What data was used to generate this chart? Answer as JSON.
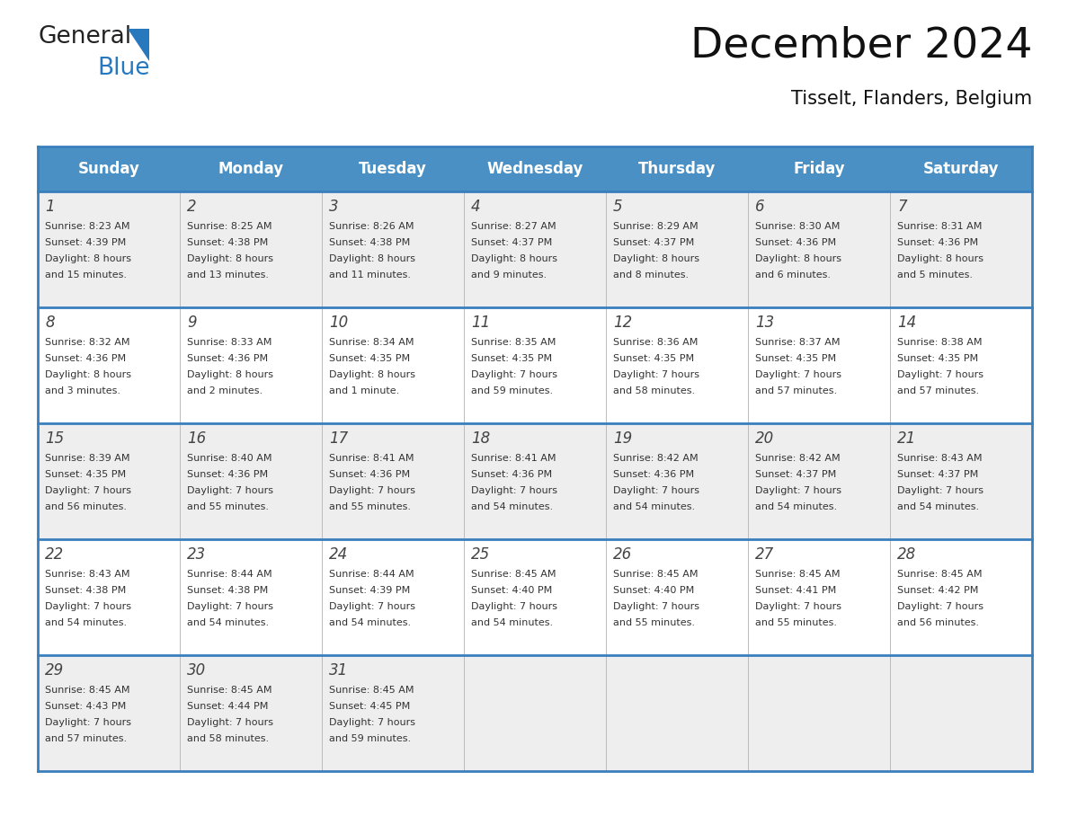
{
  "title": "December 2024",
  "subtitle": "Tisselt, Flanders, Belgium",
  "header_color": "#4A90C4",
  "header_text_color": "#FFFFFF",
  "day_headers": [
    "Sunday",
    "Monday",
    "Tuesday",
    "Wednesday",
    "Thursday",
    "Friday",
    "Saturday"
  ],
  "row_bg_even": "#EEEEEE",
  "row_bg_odd": "#FFFFFF",
  "grid_line_color": "#3A7FBD",
  "text_color": "#333333",
  "day_number_color": "#444444",
  "logo_general_color": "#222222",
  "logo_blue_color": "#2878BE",
  "title_color": "#111111",
  "subtitle_fontsize": 15,
  "title_fontsize": 34,
  "header_fontsize": 12,
  "day_num_fontsize": 12,
  "cell_text_fontsize": 8,
  "calendar_data": [
    [
      {
        "day": 1,
        "sunrise": "8:23 AM",
        "sunset": "4:39 PM",
        "daylight": "8 hours",
        "daylight2": "and 15 minutes."
      },
      {
        "day": 2,
        "sunrise": "8:25 AM",
        "sunset": "4:38 PM",
        "daylight": "8 hours",
        "daylight2": "and 13 minutes."
      },
      {
        "day": 3,
        "sunrise": "8:26 AM",
        "sunset": "4:38 PM",
        "daylight": "8 hours",
        "daylight2": "and 11 minutes."
      },
      {
        "day": 4,
        "sunrise": "8:27 AM",
        "sunset": "4:37 PM",
        "daylight": "8 hours",
        "daylight2": "and 9 minutes."
      },
      {
        "day": 5,
        "sunrise": "8:29 AM",
        "sunset": "4:37 PM",
        "daylight": "8 hours",
        "daylight2": "and 8 minutes."
      },
      {
        "day": 6,
        "sunrise": "8:30 AM",
        "sunset": "4:36 PM",
        "daylight": "8 hours",
        "daylight2": "and 6 minutes."
      },
      {
        "day": 7,
        "sunrise": "8:31 AM",
        "sunset": "4:36 PM",
        "daylight": "8 hours",
        "daylight2": "and 5 minutes."
      }
    ],
    [
      {
        "day": 8,
        "sunrise": "8:32 AM",
        "sunset": "4:36 PM",
        "daylight": "8 hours",
        "daylight2": "and 3 minutes."
      },
      {
        "day": 9,
        "sunrise": "8:33 AM",
        "sunset": "4:36 PM",
        "daylight": "8 hours",
        "daylight2": "and 2 minutes."
      },
      {
        "day": 10,
        "sunrise": "8:34 AM",
        "sunset": "4:35 PM",
        "daylight": "8 hours",
        "daylight2": "and 1 minute."
      },
      {
        "day": 11,
        "sunrise": "8:35 AM",
        "sunset": "4:35 PM",
        "daylight": "7 hours",
        "daylight2": "and 59 minutes."
      },
      {
        "day": 12,
        "sunrise": "8:36 AM",
        "sunset": "4:35 PM",
        "daylight": "7 hours",
        "daylight2": "and 58 minutes."
      },
      {
        "day": 13,
        "sunrise": "8:37 AM",
        "sunset": "4:35 PM",
        "daylight": "7 hours",
        "daylight2": "and 57 minutes."
      },
      {
        "day": 14,
        "sunrise": "8:38 AM",
        "sunset": "4:35 PM",
        "daylight": "7 hours",
        "daylight2": "and 57 minutes."
      }
    ],
    [
      {
        "day": 15,
        "sunrise": "8:39 AM",
        "sunset": "4:35 PM",
        "daylight": "7 hours",
        "daylight2": "and 56 minutes."
      },
      {
        "day": 16,
        "sunrise": "8:40 AM",
        "sunset": "4:36 PM",
        "daylight": "7 hours",
        "daylight2": "and 55 minutes."
      },
      {
        "day": 17,
        "sunrise": "8:41 AM",
        "sunset": "4:36 PM",
        "daylight": "7 hours",
        "daylight2": "and 55 minutes."
      },
      {
        "day": 18,
        "sunrise": "8:41 AM",
        "sunset": "4:36 PM",
        "daylight": "7 hours",
        "daylight2": "and 54 minutes."
      },
      {
        "day": 19,
        "sunrise": "8:42 AM",
        "sunset": "4:36 PM",
        "daylight": "7 hours",
        "daylight2": "and 54 minutes."
      },
      {
        "day": 20,
        "sunrise": "8:42 AM",
        "sunset": "4:37 PM",
        "daylight": "7 hours",
        "daylight2": "and 54 minutes."
      },
      {
        "day": 21,
        "sunrise": "8:43 AM",
        "sunset": "4:37 PM",
        "daylight": "7 hours",
        "daylight2": "and 54 minutes."
      }
    ],
    [
      {
        "day": 22,
        "sunrise": "8:43 AM",
        "sunset": "4:38 PM",
        "daylight": "7 hours",
        "daylight2": "and 54 minutes."
      },
      {
        "day": 23,
        "sunrise": "8:44 AM",
        "sunset": "4:38 PM",
        "daylight": "7 hours",
        "daylight2": "and 54 minutes."
      },
      {
        "day": 24,
        "sunrise": "8:44 AM",
        "sunset": "4:39 PM",
        "daylight": "7 hours",
        "daylight2": "and 54 minutes."
      },
      {
        "day": 25,
        "sunrise": "8:45 AM",
        "sunset": "4:40 PM",
        "daylight": "7 hours",
        "daylight2": "and 54 minutes."
      },
      {
        "day": 26,
        "sunrise": "8:45 AM",
        "sunset": "4:40 PM",
        "daylight": "7 hours",
        "daylight2": "and 55 minutes."
      },
      {
        "day": 27,
        "sunrise": "8:45 AM",
        "sunset": "4:41 PM",
        "daylight": "7 hours",
        "daylight2": "and 55 minutes."
      },
      {
        "day": 28,
        "sunrise": "8:45 AM",
        "sunset": "4:42 PM",
        "daylight": "7 hours",
        "daylight2": "and 56 minutes."
      }
    ],
    [
      {
        "day": 29,
        "sunrise": "8:45 AM",
        "sunset": "4:43 PM",
        "daylight": "7 hours",
        "daylight2": "and 57 minutes."
      },
      {
        "day": 30,
        "sunrise": "8:45 AM",
        "sunset": "4:44 PM",
        "daylight": "7 hours",
        "daylight2": "and 58 minutes."
      },
      {
        "day": 31,
        "sunrise": "8:45 AM",
        "sunset": "4:45 PM",
        "daylight": "7 hours",
        "daylight2": "and 59 minutes."
      },
      null,
      null,
      null,
      null
    ]
  ]
}
